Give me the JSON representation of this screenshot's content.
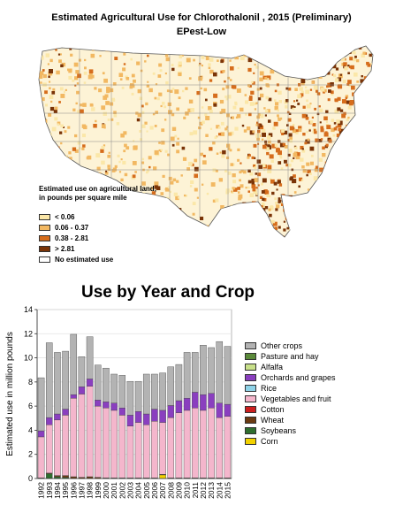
{
  "map": {
    "title": "Estimated Agricultural Use for Chlorothalonil , 2015 (Preliminary)",
    "subtitle": "EPest-Low",
    "legend": {
      "title": "Estimated use on agricultural land, in pounds per square mile",
      "items": [
        {
          "label": "< 0.06",
          "color": "#fbe7a8"
        },
        {
          "label": "0.06 - 0.37",
          "color": "#f2b862"
        },
        {
          "label": "0.38 - 2.81",
          "color": "#d66d1c"
        },
        {
          "label": "> 2.81",
          "color": "#7a3408"
        },
        {
          "label": "No estimated use",
          "color": "#ffffff"
        }
      ]
    }
  },
  "chart_data": {
    "type": "bar",
    "title": "Use by Year and Crop",
    "xlabel": "",
    "ylabel": "Estimated use in million pounds",
    "ylim": [
      0,
      14
    ],
    "yticks": [
      0,
      2,
      4,
      6,
      8,
      10,
      12,
      14
    ],
    "grid": true,
    "legend_position": "right",
    "categories": [
      "1992",
      "1993",
      "1994",
      "1995",
      "1996",
      "1997",
      "1998",
      "1999",
      "2000",
      "2001",
      "2002",
      "2003",
      "2004",
      "2005",
      "2006",
      "2007",
      "2008",
      "2009",
      "2010",
      "2011",
      "2012",
      "2013",
      "2014",
      "2015"
    ],
    "series": [
      {
        "name": "Corn",
        "color": "#f2d100",
        "values": [
          0,
          0,
          0,
          0,
          0,
          0,
          0,
          0,
          0,
          0,
          0,
          0,
          0,
          0,
          0,
          0.3,
          0,
          0,
          0,
          0,
          0,
          0,
          0,
          0
        ]
      },
      {
        "name": "Soybeans",
        "color": "#2f6e2f",
        "values": [
          0,
          0.4,
          0.15,
          0.1,
          0,
          0,
          0,
          0,
          0,
          0,
          0,
          0,
          0,
          0,
          0,
          0,
          0,
          0,
          0,
          0,
          0,
          0,
          0,
          0
        ]
      },
      {
        "name": "Wheat",
        "color": "#6b3a12",
        "values": [
          0.05,
          0.05,
          0.1,
          0.15,
          0.15,
          0.1,
          0.15,
          0.1,
          0.05,
          0.05,
          0.05,
          0.05,
          0.05,
          0.05,
          0.05,
          0.05,
          0.05,
          0.05,
          0.05,
          0.05,
          0.05,
          0.05,
          0.05,
          0.05
        ]
      },
      {
        "name": "Cotton",
        "color": "#cc1f1f",
        "values": [
          0,
          0,
          0,
          0,
          0,
          0,
          0,
          0,
          0,
          0,
          0,
          0,
          0,
          0,
          0,
          0,
          0,
          0,
          0,
          0,
          0,
          0,
          0,
          0
        ]
      },
      {
        "name": "Vegetables and fruit",
        "color": "#f4b6cc",
        "values": [
          3.4,
          4.0,
          4.6,
          5.0,
          6.5,
          6.9,
          7.5,
          5.9,
          5.8,
          5.6,
          5.2,
          4.3,
          4.6,
          4.4,
          4.7,
          4.3,
          5.0,
          5.4,
          5.6,
          5.8,
          5.6,
          5.8,
          5.0,
          5.1
        ]
      },
      {
        "name": "Rice",
        "color": "#8fd3e8",
        "values": [
          0,
          0,
          0,
          0,
          0,
          0,
          0,
          0,
          0,
          0,
          0,
          0,
          0,
          0,
          0,
          0,
          0,
          0,
          0,
          0,
          0,
          0,
          0,
          0
        ]
      },
      {
        "name": "Orchards and grapes",
        "color": "#8a3fbf",
        "values": [
          0.5,
          0.6,
          0.5,
          0.5,
          0.3,
          0.6,
          0.6,
          0.5,
          0.5,
          0.6,
          0.6,
          0.9,
          0.9,
          0.9,
          1.0,
          1.0,
          1.0,
          1.0,
          1.0,
          1.3,
          1.3,
          1.2,
          1.2,
          1.0
        ]
      },
      {
        "name": "Alfalfa",
        "color": "#c8e08a",
        "values": [
          0,
          0,
          0,
          0,
          0,
          0,
          0,
          0,
          0,
          0,
          0,
          0,
          0,
          0,
          0,
          0,
          0,
          0,
          0,
          0,
          0,
          0,
          0,
          0
        ]
      },
      {
        "name": "Pasture and hay",
        "color": "#5b8a3a",
        "values": [
          0,
          0,
          0,
          0,
          0,
          0,
          0,
          0,
          0,
          0,
          0,
          0,
          0,
          0,
          0,
          0,
          0,
          0,
          0,
          0,
          0,
          0,
          0,
          0
        ]
      },
      {
        "name": "Other crops",
        "color": "#b3b3b3",
        "values": [
          4.4,
          6.2,
          5.1,
          4.8,
          5.0,
          2.5,
          3.5,
          2.9,
          2.8,
          2.4,
          2.7,
          2.8,
          2.5,
          3.3,
          2.9,
          3.1,
          3.2,
          3.0,
          3.8,
          3.3,
          4.1,
          3.8,
          5.1,
          4.8
        ]
      }
    ]
  }
}
